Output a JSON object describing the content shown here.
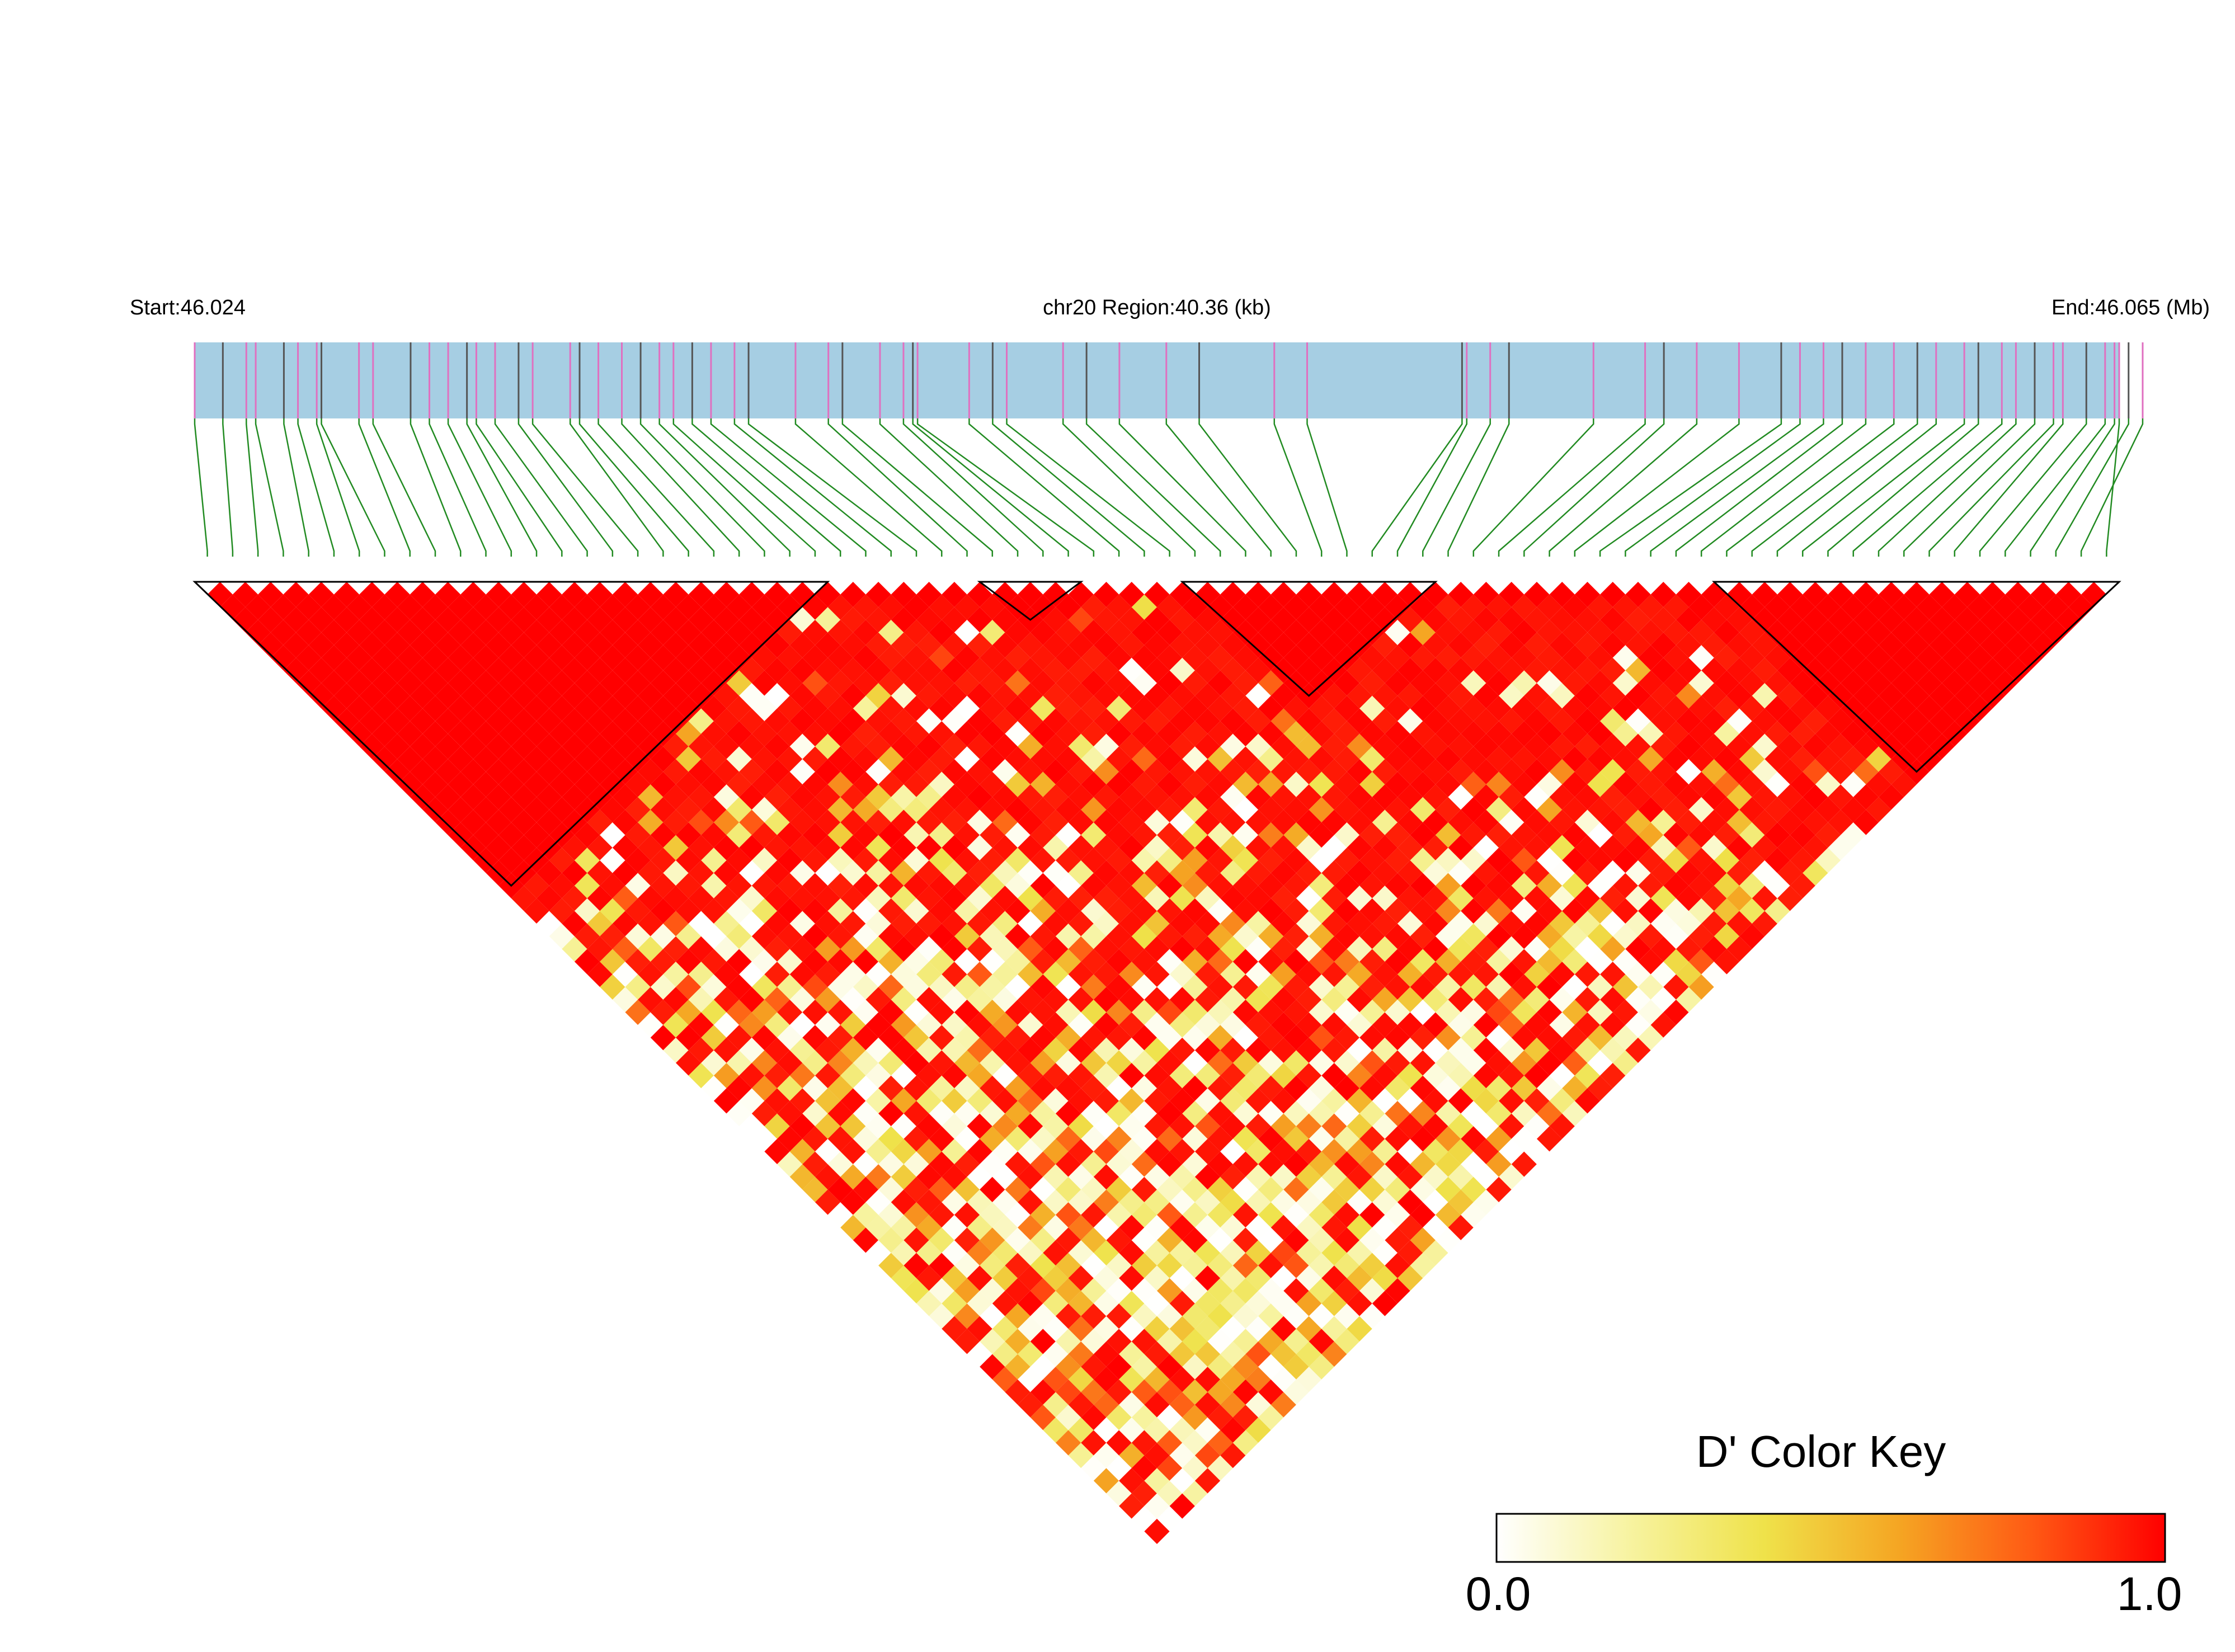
{
  "header": {
    "start_label": "Start:46.024",
    "region_label": "chr20 Region:40.36 (kb)",
    "end_label": "End:46.065 (Mb)"
  },
  "colors": {
    "region_bar": "#a6cee3",
    "snp_tick_a": "#e070c0",
    "snp_tick_b": "#555555",
    "connector": "#228b22",
    "ld_high": "#ff0000",
    "ld_low": "#ffffff",
    "block_outline": "#000000"
  },
  "color_key": {
    "title": "D' Color Key",
    "min_label": "0.0",
    "max_label": "1.0",
    "stops": [
      "#ffffff",
      "#f7f3a0",
      "#efe24a",
      "#f5a623",
      "#ff5a14",
      "#ff0000"
    ]
  },
  "chart_data": {
    "type": "heatmap",
    "metric": "D'",
    "chromosome": "chr20",
    "region_start_mb": 46.024,
    "region_end_mb": 46.065,
    "region_kb": 40.36,
    "n_snps": 76,
    "snp_positions_mb": [
      46.024,
      46.0246,
      46.0251,
      46.0253,
      46.0259,
      46.0262,
      46.0266,
      46.0267,
      46.0275,
      46.0278,
      46.0286,
      46.029,
      46.0294,
      46.0298,
      46.03,
      46.0304,
      46.0309,
      46.0312,
      46.032,
      46.0322,
      46.0326,
      46.0331,
      46.0335,
      46.0339,
      46.0342,
      46.0346,
      46.035,
      46.0355,
      46.0358,
      46.0368,
      46.0375,
      46.0378,
      46.0386,
      46.0391,
      46.0393,
      46.0394,
      46.0405,
      46.041,
      46.0413,
      46.0425,
      46.043,
      46.0437,
      46.0447,
      46.0454,
      46.047,
      46.0477,
      46.051,
      46.0511,
      46.0516,
      46.052,
      46.0538,
      46.0549,
      46.0553,
      46.056,
      46.0569,
      46.0578,
      46.0582,
      46.0587,
      46.0591,
      46.0596,
      46.0602,
      46.0607,
      46.0611,
      46.0617,
      46.062,
      46.0625,
      46.0628,
      46.0632,
      46.0636,
      46.0638,
      46.0643,
      46.0647,
      46.0649,
      46.0652,
      46.0655,
      46.065
    ],
    "haplotype_blocks_snp_index": [
      [
        0,
        24
      ],
      [
        31,
        34
      ],
      [
        39,
        48
      ],
      [
        60,
        75
      ]
    ],
    "dprime_rule": "1.0 within blocks; elsewhere decays with SNP separation with mixed strong and weak LD",
    "scale": [
      0.0,
      1.0
    ]
  }
}
